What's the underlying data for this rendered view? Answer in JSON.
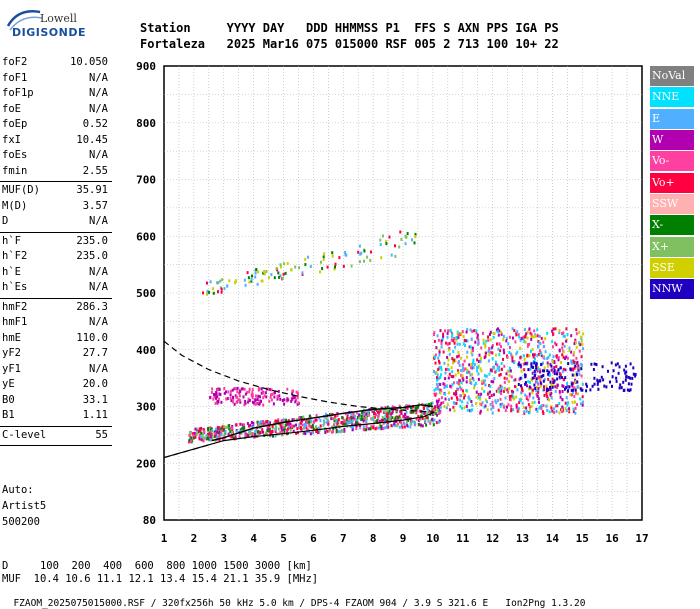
{
  "logo": {
    "line1": "Lowell",
    "line2": "DIGISONDE"
  },
  "header": {
    "labels": [
      "Station",
      "YYYY",
      "DAY",
      "DDD",
      "HHMMSS",
      "P1",
      "FFS",
      "S",
      "AXN",
      "PPS",
      "IGA",
      "PS"
    ],
    "values": [
      "Fortaleza",
      "2025",
      "Mar16",
      "075",
      "015000",
      "RSF",
      "005",
      "2",
      "713",
      "100",
      "10+",
      "22"
    ]
  },
  "params": [
    {
      "key": "foF2",
      "value": "10.050"
    },
    {
      "key": "foF1",
      "value": "N/A"
    },
    {
      "key": "foF1p",
      "value": "N/A"
    },
    {
      "key": "foE",
      "value": "N/A"
    },
    {
      "key": "foEp",
      "value": "0.52"
    },
    {
      "key": "fxI",
      "value": "10.45"
    },
    {
      "key": "foEs",
      "value": "N/A"
    },
    {
      "key": "fmin",
      "value": "2.55"
    },
    {
      "sep": true
    },
    {
      "key": "MUF(D)",
      "value": "35.91"
    },
    {
      "key": "M(D)",
      "value": "3.57"
    },
    {
      "key": "D",
      "value": "N/A"
    },
    {
      "sep": true
    },
    {
      "key": "h`F",
      "value": "235.0"
    },
    {
      "key": "h`F2",
      "value": "235.0"
    },
    {
      "key": "h`E",
      "value": "N/A"
    },
    {
      "key": "h`Es",
      "value": "N/A"
    },
    {
      "sep": true
    },
    {
      "key": "hmF2",
      "value": "286.3"
    },
    {
      "key": "hmF1",
      "value": "N/A"
    },
    {
      "key": "hmE",
      "value": "110.0"
    },
    {
      "key": "yF2",
      "value": "27.7"
    },
    {
      "key": "yF1",
      "value": "N/A"
    },
    {
      "key": "yE",
      "value": "20.0"
    },
    {
      "key": "B0",
      "value": "33.1"
    },
    {
      "key": "B1",
      "value": "1.11"
    },
    {
      "sep": true
    },
    {
      "key": "C-level",
      "value": "55"
    },
    {
      "sep": true
    }
  ],
  "auto": {
    "line1": "Auto:",
    "line2": "Artist5",
    "line3": "500200"
  },
  "bottom": {
    "distance_label": "D",
    "distances": [
      "100",
      "200",
      "400",
      "600",
      "800",
      "1000",
      "1500",
      "3000"
    ],
    "distance_unit": "[km]",
    "muf_label": "MUF",
    "mufs": [
      "10.4",
      "10.6",
      "11.1",
      "12.1",
      "13.4",
      "15.4",
      "21.1",
      "35.9"
    ],
    "muf_unit": "[MHz]",
    "file_info": "FZAOM_2025075015000.RSF / 320fx256h 50 kHz 5.0 km / DPS-4 FZAOM 904 / 3.9 S 321.6 E",
    "software": "Ion2Png 1.3.20"
  },
  "legend": [
    {
      "label": "NoVal",
      "color": "#808080"
    },
    {
      "label": "NNE",
      "color": "#00e0ff"
    },
    {
      "label": "E",
      "color": "#50b0ff"
    },
    {
      "label": "W",
      "color": "#b000b0"
    },
    {
      "label": "Vo-",
      "color": "#ff40a0"
    },
    {
      "label": "Vo+",
      "color": "#ff0040"
    },
    {
      "label": "SSW",
      "color": "#ffb0b0"
    },
    {
      "label": "X-",
      "color": "#008000"
    },
    {
      "label": "X+",
      "color": "#80c060"
    },
    {
      "label": "SSE",
      "color": "#d0d000"
    },
    {
      "label": "NNW",
      "color": "#2000c0"
    }
  ],
  "chart_data": {
    "type": "scatter",
    "xlim": [
      1,
      17
    ],
    "ylim": [
      80,
      900
    ],
    "x_ticks": [
      "1",
      "2",
      "3",
      "4",
      "5",
      "6",
      "7",
      "8",
      "9",
      "10",
      "11",
      "12",
      "13",
      "14",
      "15",
      "16",
      "17"
    ],
    "y_ticks": [
      "80",
      "200",
      "300",
      "400",
      "500",
      "600",
      "700",
      "800",
      "900"
    ],
    "y_tick_values": [
      80,
      200,
      300,
      400,
      500,
      600,
      700,
      800,
      900
    ],
    "grid": true,
    "echo_clusters": [
      {
        "name": "F trace",
        "x_range": [
          1.8,
          10.2
        ],
        "y_range": [
          240,
          320
        ],
        "colors": [
          "#ff0040",
          "#ff40a0",
          "#008000",
          "#50b0ff",
          "#b000b0",
          "#80c060"
        ]
      },
      {
        "name": "spread F",
        "x_range": [
          10.0,
          15.0
        ],
        "y_range": [
          290,
          440
        ],
        "colors": [
          "#b000b0",
          "#ff0040",
          "#00e0ff",
          "#ff40a0",
          "#d0d000",
          "#50b0ff"
        ]
      },
      {
        "name": "low spread",
        "x_range": [
          2.5,
          5.5
        ],
        "y_range": [
          305,
          335
        ],
        "colors": [
          "#b000b0",
          "#ff40a0"
        ]
      },
      {
        "name": "NNW echoes",
        "x_range": [
          12.8,
          16.8
        ],
        "y_range": [
          330,
          380
        ],
        "colors": [
          "#2000c0"
        ]
      },
      {
        "name": "second hop",
        "x_range": [
          2.2,
          9.5
        ],
        "y_range": [
          495,
          620
        ],
        "colors": [
          "#d0d000",
          "#50b0ff",
          "#ff0040",
          "#80c060",
          "#008000"
        ]
      }
    ],
    "profile_solid": [
      [
        1.0,
        210
      ],
      [
        2.0,
        225
      ],
      [
        3.0,
        240
      ],
      [
        4.0,
        247
      ],
      [
        5.0,
        252
      ],
      [
        6.0,
        258
      ],
      [
        7.0,
        265
      ],
      [
        8.0,
        270
      ],
      [
        9.0,
        276
      ],
      [
        9.7,
        282
      ],
      [
        10.05,
        290
      ]
    ],
    "profile_dashed_upper": [
      [
        1.0,
        415
      ],
      [
        1.6,
        390
      ],
      [
        2.5,
        365
      ],
      [
        3.5,
        345
      ],
      [
        4.5,
        330
      ],
      [
        5.5,
        318
      ],
      [
        6.5,
        308
      ],
      [
        7.5,
        300
      ],
      [
        8.5,
        295
      ],
      [
        9.5,
        292
      ],
      [
        10.05,
        290
      ]
    ],
    "profile_dashed_lower": [
      [
        1.0,
        210
      ],
      [
        1.8,
        222
      ],
      [
        2.6,
        234
      ]
    ],
    "trace_line": [
      [
        2.6,
        240
      ],
      [
        3.0,
        245
      ],
      [
        4.0,
        262
      ],
      [
        5.0,
        272
      ],
      [
        6.0,
        280
      ],
      [
        7.0,
        288
      ],
      [
        8.0,
        295
      ],
      [
        9.0,
        298
      ],
      [
        9.6,
        303
      ],
      [
        10.0,
        300
      ]
    ]
  }
}
